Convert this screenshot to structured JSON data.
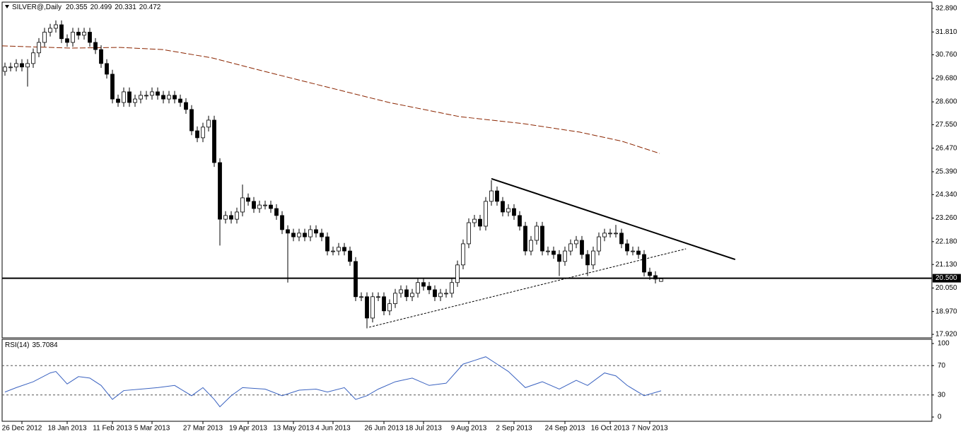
{
  "chart_data": [
    {
      "type": "candlestick",
      "title": "SILVER@,Daily",
      "open": [
        30.0,
        30.2,
        30.2,
        30.36,
        30.2,
        30.36,
        30.85,
        31.33,
        31.8,
        31.98,
        32.14,
        31.5,
        31.33,
        31.8,
        31.66,
        31.8,
        31.33,
        31.0,
        30.36,
        29.87,
        28.73,
        28.57,
        29.06,
        28.57,
        28.73,
        28.9,
        28.9,
        29.06,
        28.9,
        28.73,
        28.9,
        28.73,
        28.57,
        28.25,
        27.27,
        26.95,
        27.44,
        27.76,
        25.81,
        23.21,
        23.38,
        23.21,
        23.54,
        24.19,
        24.03,
        23.7,
        23.86,
        23.86,
        23.7,
        23.38,
        22.73,
        22.57,
        22.4,
        22.57,
        22.4,
        22.73,
        22.57,
        22.4,
        21.75,
        21.75,
        21.92,
        21.75,
        21.27,
        19.65,
        19.65,
        18.67,
        19.65,
        19.65,
        19.0,
        19.33,
        19.81,
        19.97,
        19.65,
        19.81,
        20.3,
        20.13,
        19.97,
        19.65,
        19.81,
        19.81,
        20.3,
        21.11,
        22.08,
        23.05,
        23.21,
        22.89,
        24.03,
        24.51,
        24.03,
        23.54,
        23.7,
        23.38,
        22.89,
        21.75,
        22.24,
        22.89,
        21.75,
        21.75,
        21.59,
        21.27,
        21.75,
        22.08,
        22.24,
        21.59,
        21.11,
        21.75,
        22.4,
        22.57,
        22.57,
        22.57,
        22.08,
        21.75,
        21.75,
        21.59,
        20.78,
        20.62,
        20.355
      ],
      "high": [
        30.4,
        30.4,
        30.56,
        30.56,
        30.56,
        31.05,
        31.53,
        32.0,
        32.18,
        32.34,
        32.34,
        31.7,
        32.0,
        32.0,
        32.0,
        32.0,
        31.53,
        31.2,
        30.56,
        30.07,
        28.93,
        29.26,
        29.26,
        28.93,
        29.1,
        29.1,
        29.26,
        29.26,
        29.1,
        29.1,
        29.1,
        28.93,
        28.77,
        28.45,
        27.47,
        27.64,
        27.96,
        27.96,
        26.01,
        23.58,
        23.58,
        23.74,
        24.8,
        24.39,
        24.23,
        24.06,
        24.06,
        24.06,
        23.9,
        23.58,
        22.93,
        22.77,
        22.77,
        22.77,
        22.93,
        22.93,
        22.77,
        22.6,
        21.95,
        22.12,
        22.12,
        21.95,
        21.47,
        19.85,
        19.85,
        19.85,
        19.85,
        19.85,
        19.53,
        20.01,
        20.17,
        20.17,
        20.01,
        20.5,
        20.5,
        20.33,
        20.17,
        20.01,
        20.01,
        20.5,
        21.31,
        22.28,
        23.25,
        23.41,
        23.41,
        24.23,
        25.0,
        24.71,
        24.23,
        23.9,
        23.9,
        23.58,
        23.09,
        22.44,
        23.09,
        23.09,
        21.95,
        21.95,
        21.79,
        21.95,
        22.28,
        22.44,
        22.44,
        21.79,
        21.95,
        22.6,
        22.77,
        22.77,
        22.95,
        22.77,
        22.28,
        21.95,
        21.95,
        21.79,
        20.98,
        20.82,
        20.499
      ],
      "low": [
        29.8,
        30.0,
        30.0,
        30.0,
        29.3,
        30.16,
        30.65,
        31.13,
        31.6,
        31.78,
        31.3,
        31.13,
        31.13,
        31.46,
        31.46,
        31.13,
        30.8,
        30.16,
        29.67,
        28.53,
        28.37,
        28.37,
        28.37,
        28.37,
        28.53,
        28.7,
        28.7,
        28.7,
        28.53,
        28.53,
        28.53,
        28.37,
        28.05,
        27.07,
        26.75,
        26.75,
        27.24,
        25.61,
        22.0,
        23.01,
        23.01,
        23.01,
        23.34,
        23.83,
        23.5,
        23.5,
        23.66,
        23.5,
        23.18,
        22.53,
        20.3,
        22.2,
        22.2,
        22.2,
        22.2,
        22.37,
        22.2,
        21.55,
        21.55,
        21.55,
        21.55,
        21.07,
        19.45,
        19.45,
        18.2,
        18.47,
        19.45,
        18.8,
        18.8,
        19.13,
        19.61,
        19.45,
        19.45,
        19.61,
        19.93,
        19.77,
        19.45,
        19.45,
        19.61,
        19.61,
        20.1,
        20.91,
        21.88,
        22.85,
        22.69,
        22.69,
        23.83,
        23.83,
        23.34,
        23.34,
        23.18,
        22.69,
        21.55,
        21.55,
        22.04,
        21.55,
        21.55,
        21.39,
        20.6,
        21.07,
        21.55,
        21.88,
        21.39,
        20.6,
        20.91,
        21.55,
        22.2,
        22.37,
        22.37,
        21.88,
        21.55,
        21.55,
        21.39,
        20.58,
        20.42,
        20.26,
        20.331
      ],
      "close": [
        30.2,
        30.2,
        30.36,
        30.2,
        30.36,
        30.85,
        31.33,
        31.8,
        31.98,
        32.14,
        31.5,
        31.33,
        31.8,
        31.66,
        31.8,
        31.33,
        31.0,
        30.36,
        29.87,
        28.73,
        28.57,
        29.06,
        28.57,
        28.73,
        28.9,
        28.9,
        29.06,
        28.9,
        28.73,
        28.9,
        28.73,
        28.57,
        28.25,
        27.27,
        26.95,
        27.44,
        27.76,
        25.81,
        23.21,
        23.38,
        23.21,
        23.54,
        24.19,
        24.03,
        23.7,
        23.86,
        23.86,
        23.7,
        23.38,
        22.73,
        22.57,
        22.4,
        22.57,
        22.4,
        22.73,
        22.57,
        22.4,
        21.75,
        21.75,
        21.92,
        21.75,
        21.27,
        19.65,
        19.65,
        18.67,
        19.65,
        19.65,
        19.0,
        19.33,
        19.81,
        19.97,
        19.65,
        19.81,
        20.3,
        20.13,
        19.97,
        19.65,
        19.81,
        19.81,
        20.3,
        21.11,
        22.08,
        23.05,
        23.21,
        22.89,
        24.03,
        24.51,
        24.03,
        23.54,
        23.7,
        23.38,
        22.89,
        21.75,
        22.24,
        22.89,
        21.75,
        21.75,
        21.59,
        21.27,
        21.75,
        22.08,
        22.24,
        21.59,
        21.11,
        21.75,
        22.4,
        22.57,
        22.57,
        22.57,
        22.08,
        21.75,
        21.75,
        21.59,
        20.78,
        20.62,
        20.46,
        20.472
      ],
      "xlim": [
        -0.5,
        163.875
      ],
      "xticks": [
        {
          "value": 3,
          "label": "26 Dec 2012"
        },
        {
          "value": 11,
          "label": "18 Jan 2013"
        },
        {
          "value": 19,
          "label": "11 Feb 2013"
        },
        {
          "value": 26,
          "label": "5 Mar 2013"
        },
        {
          "value": 35,
          "label": "27 Mar 2013"
        },
        {
          "value": 43,
          "label": "19 Apr 2013"
        },
        {
          "value": 51,
          "label": "13 May 2013"
        },
        {
          "value": 58,
          "label": "4 Jun 2013"
        },
        {
          "value": 67,
          "label": "26 Jun 2013"
        },
        {
          "value": 74,
          "label": "18 Jul 2013"
        },
        {
          "value": 82,
          "label": "9 Aug 2013"
        },
        {
          "value": 90,
          "label": "2 Sep 2013"
        },
        {
          "value": 99,
          "label": "24 Sep 2013"
        },
        {
          "value": 107,
          "label": "16 Oct 2013"
        },
        {
          "value": 114,
          "label": "7 Nov 2013"
        }
      ],
      "ylim": [
        17.76,
        33.18
      ],
      "yticks": [
        {
          "value": 32.89,
          "label": "32.890"
        },
        {
          "value": 31.81,
          "label": "31.810"
        },
        {
          "value": 30.76,
          "label": "30.760"
        },
        {
          "value": 29.68,
          "label": "29.680"
        },
        {
          "value": 28.6,
          "label": "28.600"
        },
        {
          "value": 27.55,
          "label": "27.550"
        },
        {
          "value": 26.47,
          "label": "26.470"
        },
        {
          "value": 25.39,
          "label": "25.390"
        },
        {
          "value": 24.34,
          "label": "24.340"
        },
        {
          "value": 23.26,
          "label": "23.260"
        },
        {
          "value": 22.18,
          "label": "22.180"
        },
        {
          "value": 21.13,
          "label": "21.130"
        },
        {
          "value": 20.05,
          "label": "20.050"
        },
        {
          "value": 18.97,
          "label": "18.970"
        },
        {
          "value": 17.92,
          "label": "17.920"
        }
      ],
      "moving_average": {
        "color": "#8b2500",
        "x": [
          -0.5,
          11.6,
          20.4,
          27.9,
          36.6,
          45.4,
          55.4,
          67.9,
          80.4,
          91.6,
          101.6,
          109.1,
          115.75
        ],
        "values": [
          31.17,
          31.07,
          31.1,
          31.0,
          30.62,
          30.03,
          29.38,
          28.57,
          27.92,
          27.6,
          27.21,
          26.79,
          26.23
        ]
      },
      "lines": [
        {
          "style": "solid",
          "x": [
            86,
            129.1
          ],
          "values": [
            25.07,
            21.36
          ]
        },
        {
          "style": "dashed",
          "x": [
            64.4,
            120.4
          ],
          "values": [
            18.25,
            21.85
          ]
        }
      ],
      "hline": {
        "value": 20.5,
        "label": "20.500"
      }
    },
    {
      "type": "line",
      "title": "RSI(14)",
      "color": "#3a62c0",
      "x": [
        0,
        2,
        5,
        8,
        9,
        11,
        13,
        15,
        17,
        19,
        21,
        24,
        27,
        30,
        33,
        35,
        37,
        38,
        40,
        42,
        46,
        49,
        52,
        55,
        57,
        60,
        62,
        64,
        66,
        69,
        72,
        75,
        78,
        81,
        83,
        85,
        87,
        89,
        92,
        95,
        98,
        101,
        103,
        106,
        108,
        110,
        113,
        116
      ],
      "values": [
        34,
        40,
        48,
        60,
        62,
        45,
        55,
        53,
        43,
        24,
        36,
        38,
        40,
        43,
        29,
        40,
        24,
        14,
        29,
        40,
        38,
        29,
        36.5,
        38,
        34,
        40,
        24,
        29,
        38,
        48,
        53,
        43,
        46,
        72,
        77,
        82,
        72,
        62,
        40,
        48,
        38,
        50,
        43,
        60,
        56,
        43,
        29,
        35.7084
      ],
      "xlim": [
        -0.5,
        163.875
      ],
      "ylim": [
        0,
        100
      ],
      "yticks": [
        0,
        30,
        70,
        100
      ],
      "levels": [
        30,
        70
      ]
    }
  ]
}
